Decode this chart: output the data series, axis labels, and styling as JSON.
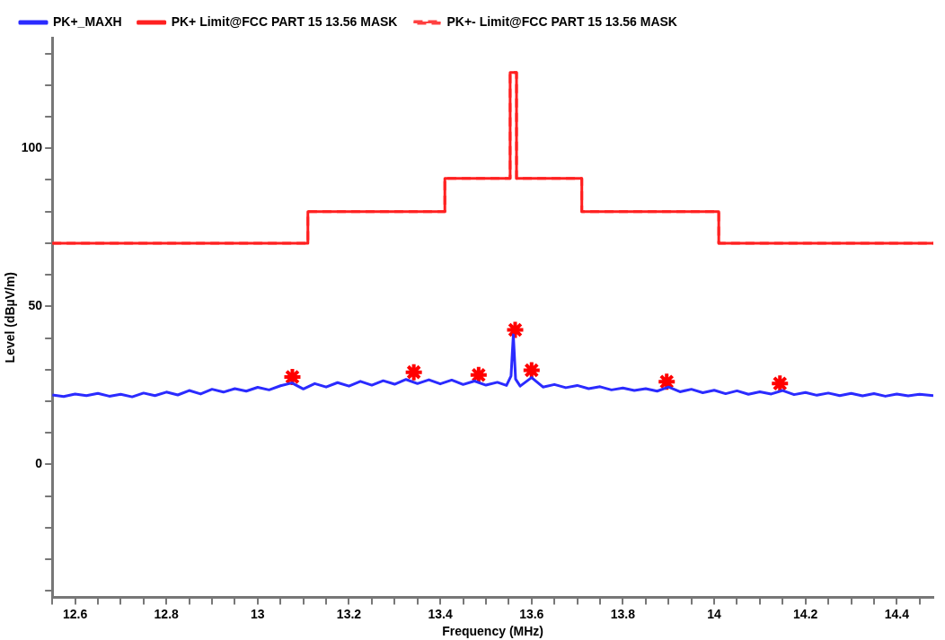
{
  "chart_data": {
    "type": "line",
    "xlabel": "Frequency (MHz)",
    "ylabel": "Level (dBµV/m)",
    "xlim": [
      12.55,
      14.48
    ],
    "ylim": [
      -42,
      135
    ],
    "xticks": [
      {
        "value": 12.55,
        "label": null
      },
      12.6,
      {
        "value": 12.65,
        "label": null
      },
      {
        "value": 12.7,
        "label": null
      },
      {
        "value": 12.75,
        "label": null
      },
      12.8,
      {
        "value": 12.85,
        "label": null
      },
      {
        "value": 12.9,
        "label": null
      },
      {
        "value": 12.95,
        "label": null
      },
      13,
      {
        "value": 13.05,
        "label": null
      },
      {
        "value": 13.1,
        "label": null
      },
      {
        "value": 13.15,
        "label": null
      },
      13.2,
      {
        "value": 13.25,
        "label": null
      },
      {
        "value": 13.3,
        "label": null
      },
      {
        "value": 13.35,
        "label": null
      },
      13.4,
      {
        "value": 13.45,
        "label": null
      },
      {
        "value": 13.5,
        "label": null
      },
      {
        "value": 13.55,
        "label": null
      },
      13.6,
      {
        "value": 13.65,
        "label": null
      },
      {
        "value": 13.7,
        "label": null
      },
      {
        "value": 13.75,
        "label": null
      },
      13.8,
      {
        "value": 13.85,
        "label": null
      },
      {
        "value": 13.9,
        "label": null
      },
      {
        "value": 13.95,
        "label": null
      },
      14,
      {
        "value": 14.05,
        "label": null
      },
      {
        "value": 14.1,
        "label": null
      },
      {
        "value": 14.15,
        "label": null
      },
      14.2,
      {
        "value": 14.25,
        "label": null
      },
      {
        "value": 14.3,
        "label": null
      },
      {
        "value": 14.35,
        "label": null
      },
      14.4,
      {
        "value": 14.45,
        "label": null
      }
    ],
    "yticks": [
      {
        "value": -40,
        "label": null
      },
      {
        "value": -30,
        "label": null
      },
      {
        "value": -20,
        "label": null
      },
      {
        "value": -10,
        "label": null
      },
      0,
      {
        "value": 10,
        "label": null
      },
      {
        "value": 20,
        "label": null
      },
      {
        "value": 30,
        "label": null
      },
      {
        "value": 40,
        "label": null
      },
      50,
      {
        "value": 60,
        "label": null
      },
      {
        "value": 70,
        "label": null
      },
      {
        "value": 80,
        "label": null
      },
      {
        "value": 90,
        "label": null
      },
      100,
      {
        "value": 110,
        "label": null
      },
      {
        "value": 120,
        "label": null
      },
      {
        "value": 130,
        "label": null
      }
    ],
    "legend": "top",
    "marker": "none",
    "grid": false,
    "series": [
      {
        "name": "PK+_MAXH",
        "color": "#2b2bff",
        "line_style": "solid",
        "x": [
          12.55,
          12.575,
          12.6,
          12.625,
          12.65,
          12.675,
          12.7,
          12.725,
          12.75,
          12.775,
          12.8,
          12.825,
          12.85,
          12.875,
          12.9,
          12.925,
          12.95,
          12.975,
          13.0,
          13.025,
          13.05,
          13.075,
          13.1,
          13.125,
          13.15,
          13.175,
          13.2,
          13.225,
          13.25,
          13.275,
          13.3,
          13.325,
          13.35,
          13.375,
          13.4,
          13.425,
          13.45,
          13.475,
          13.5,
          13.525,
          13.545,
          13.555,
          13.56,
          13.565,
          13.575,
          13.6,
          13.625,
          13.65,
          13.675,
          13.7,
          13.725,
          13.75,
          13.775,
          13.8,
          13.825,
          13.85,
          13.875,
          13.9,
          13.925,
          13.95,
          13.975,
          14.0,
          14.025,
          14.05,
          14.075,
          14.1,
          14.125,
          14.15,
          14.175,
          14.2,
          14.225,
          14.25,
          14.275,
          14.3,
          14.325,
          14.35,
          14.375,
          14.4,
          14.425,
          14.45,
          14.48
        ],
        "values": [
          22.0,
          21.5,
          22.3,
          21.8,
          22.5,
          21.6,
          22.2,
          21.4,
          22.6,
          21.8,
          22.9,
          22.0,
          23.4,
          22.3,
          23.8,
          22.9,
          24.0,
          23.2,
          24.4,
          23.6,
          24.9,
          25.8,
          23.9,
          25.6,
          24.5,
          25.9,
          24.8,
          26.3,
          25.1,
          26.5,
          25.4,
          26.9,
          25.6,
          26.8,
          25.5,
          26.7,
          25.3,
          26.4,
          25.1,
          26.0,
          25.0,
          28.0,
          41.0,
          27.0,
          24.8,
          27.5,
          24.5,
          25.3,
          24.3,
          25.0,
          24.0,
          24.6,
          23.6,
          24.2,
          23.4,
          24.0,
          23.2,
          24.5,
          23.0,
          23.8,
          22.7,
          23.5,
          22.4,
          23.3,
          22.2,
          23.0,
          22.3,
          23.4,
          22.1,
          22.8,
          21.9,
          22.6,
          21.8,
          22.5,
          21.7,
          22.4,
          21.6,
          22.3,
          21.7,
          22.2,
          21.8
        ]
      },
      {
        "name": "PK+ Limit@FCC PART 15 13.56 MASK",
        "color": "#ff2020",
        "line_style": "solid",
        "x": [
          12.55,
          13.11,
          13.11,
          13.41,
          13.41,
          13.553,
          13.553,
          13.567,
          13.567,
          13.71,
          13.71,
          14.01,
          14.01,
          14.48
        ],
        "values": [
          70,
          70,
          80,
          80,
          90.5,
          90.5,
          124,
          124,
          90.5,
          90.5,
          80,
          80,
          70,
          70
        ]
      },
      {
        "name": "PK+- Limit@FCC PART 15 13.56 MASK",
        "color": "#ff4040",
        "line_style": "dashed",
        "x": [
          12.55,
          13.11,
          13.11,
          13.41,
          13.41,
          13.553,
          13.553,
          13.567,
          13.567,
          13.71,
          13.71,
          14.01,
          14.01,
          14.48
        ],
        "values": [
          70,
          70,
          80,
          80,
          90.5,
          90.5,
          124,
          124,
          90.5,
          90.5,
          80,
          80,
          70,
          70
        ]
      },
      {
        "type": "scatter",
        "color": "#ff0000",
        "marker": "cross",
        "x": [
          13.076,
          13.342,
          13.484,
          13.564,
          13.6,
          13.896,
          14.144
        ],
        "values": [
          27.7,
          29.2,
          28.3,
          42.6,
          29.8,
          26.2,
          25.6
        ]
      }
    ]
  }
}
